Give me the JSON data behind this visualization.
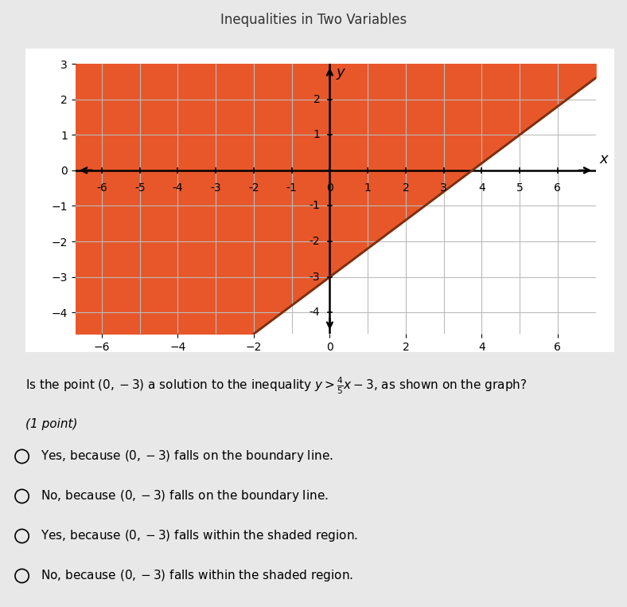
{
  "title": "Inequalities in Two Variables",
  "slope": 0.8,
  "intercept": -3,
  "xlim": [
    -6.7,
    7.0
  ],
  "ylim": [
    -4.6,
    3.0
  ],
  "xticks": [
    -6,
    -5,
    -4,
    -3,
    -2,
    -1,
    0,
    1,
    2,
    3,
    4,
    5,
    6
  ],
  "yticks": [
    -4,
    -3,
    -2,
    -1,
    1,
    2
  ],
  "shade_color": "#E8572A",
  "line_color": "#7a3010",
  "line_style": "solid",
  "line_width": 2.0,
  "grid_color": "#bbbbbb",
  "grid_lw": 0.8,
  "background_color": "#ffffff",
  "outer_bg": "#e8e8e8",
  "question_text": "Is the point $(0,-3)$ a solution to the inequality $y > \\frac{4}{5}x - 3$, as shown on the graph?",
  "point_label": "(1 point)",
  "options": [
    "Yes, because $(0,-3)$ falls on the boundary line.",
    "No, because $(0,-3)$ falls on the boundary line.",
    "Yes, because $(0,-3)$ falls within the shaded region.",
    "No, because $(0,-3)$ falls within the shaded region."
  ],
  "header_bg": "#5bc8e0",
  "header_text_color": "#333333",
  "header_title": "Inequalities in Two Variables"
}
